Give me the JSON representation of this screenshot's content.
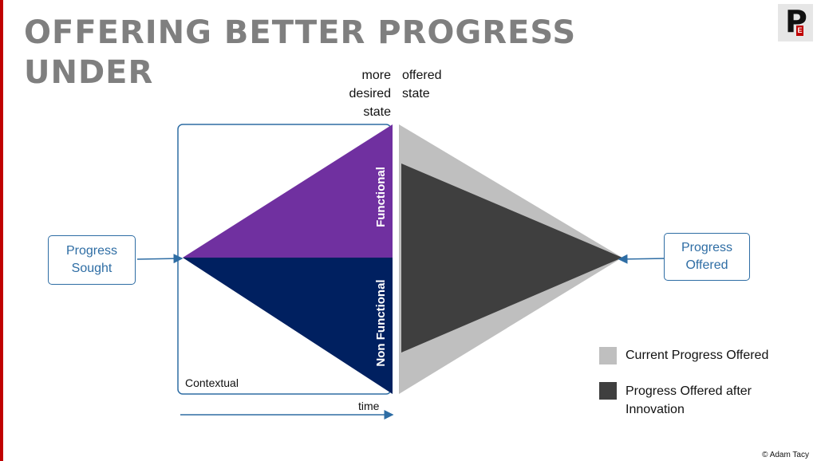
{
  "slide": {
    "title": "OFFERING BETTER PROGRESS\nUNDER"
  },
  "logo": {
    "letter": "P",
    "sub": "E"
  },
  "diagram": {
    "top_left_label": "more\ndesired\nstate",
    "top_right_label": "offered\nstate",
    "progress_sought": "Progress\nSought",
    "progress_offered": "Progress\nOffered",
    "functional_label": "Functional",
    "non_functional_label": "Non Functional",
    "contextual_label": "Contextual",
    "time_label": "time"
  },
  "legend": {
    "items": [
      {
        "label": "Current Progress Offered",
        "color": "#bfbfbf"
      },
      {
        "label": "Progress Offered after\nInnovation",
        "color": "#3f3f3f"
      }
    ]
  },
  "colors": {
    "functional": "#7030a0",
    "non_functional": "#002060",
    "current_offered": "#bfbfbf",
    "innovation_offered": "#3f3f3f",
    "accent_blue": "#2e6da4",
    "title_gray": "#7f7f7f"
  },
  "credit": "© Adam Tacy"
}
